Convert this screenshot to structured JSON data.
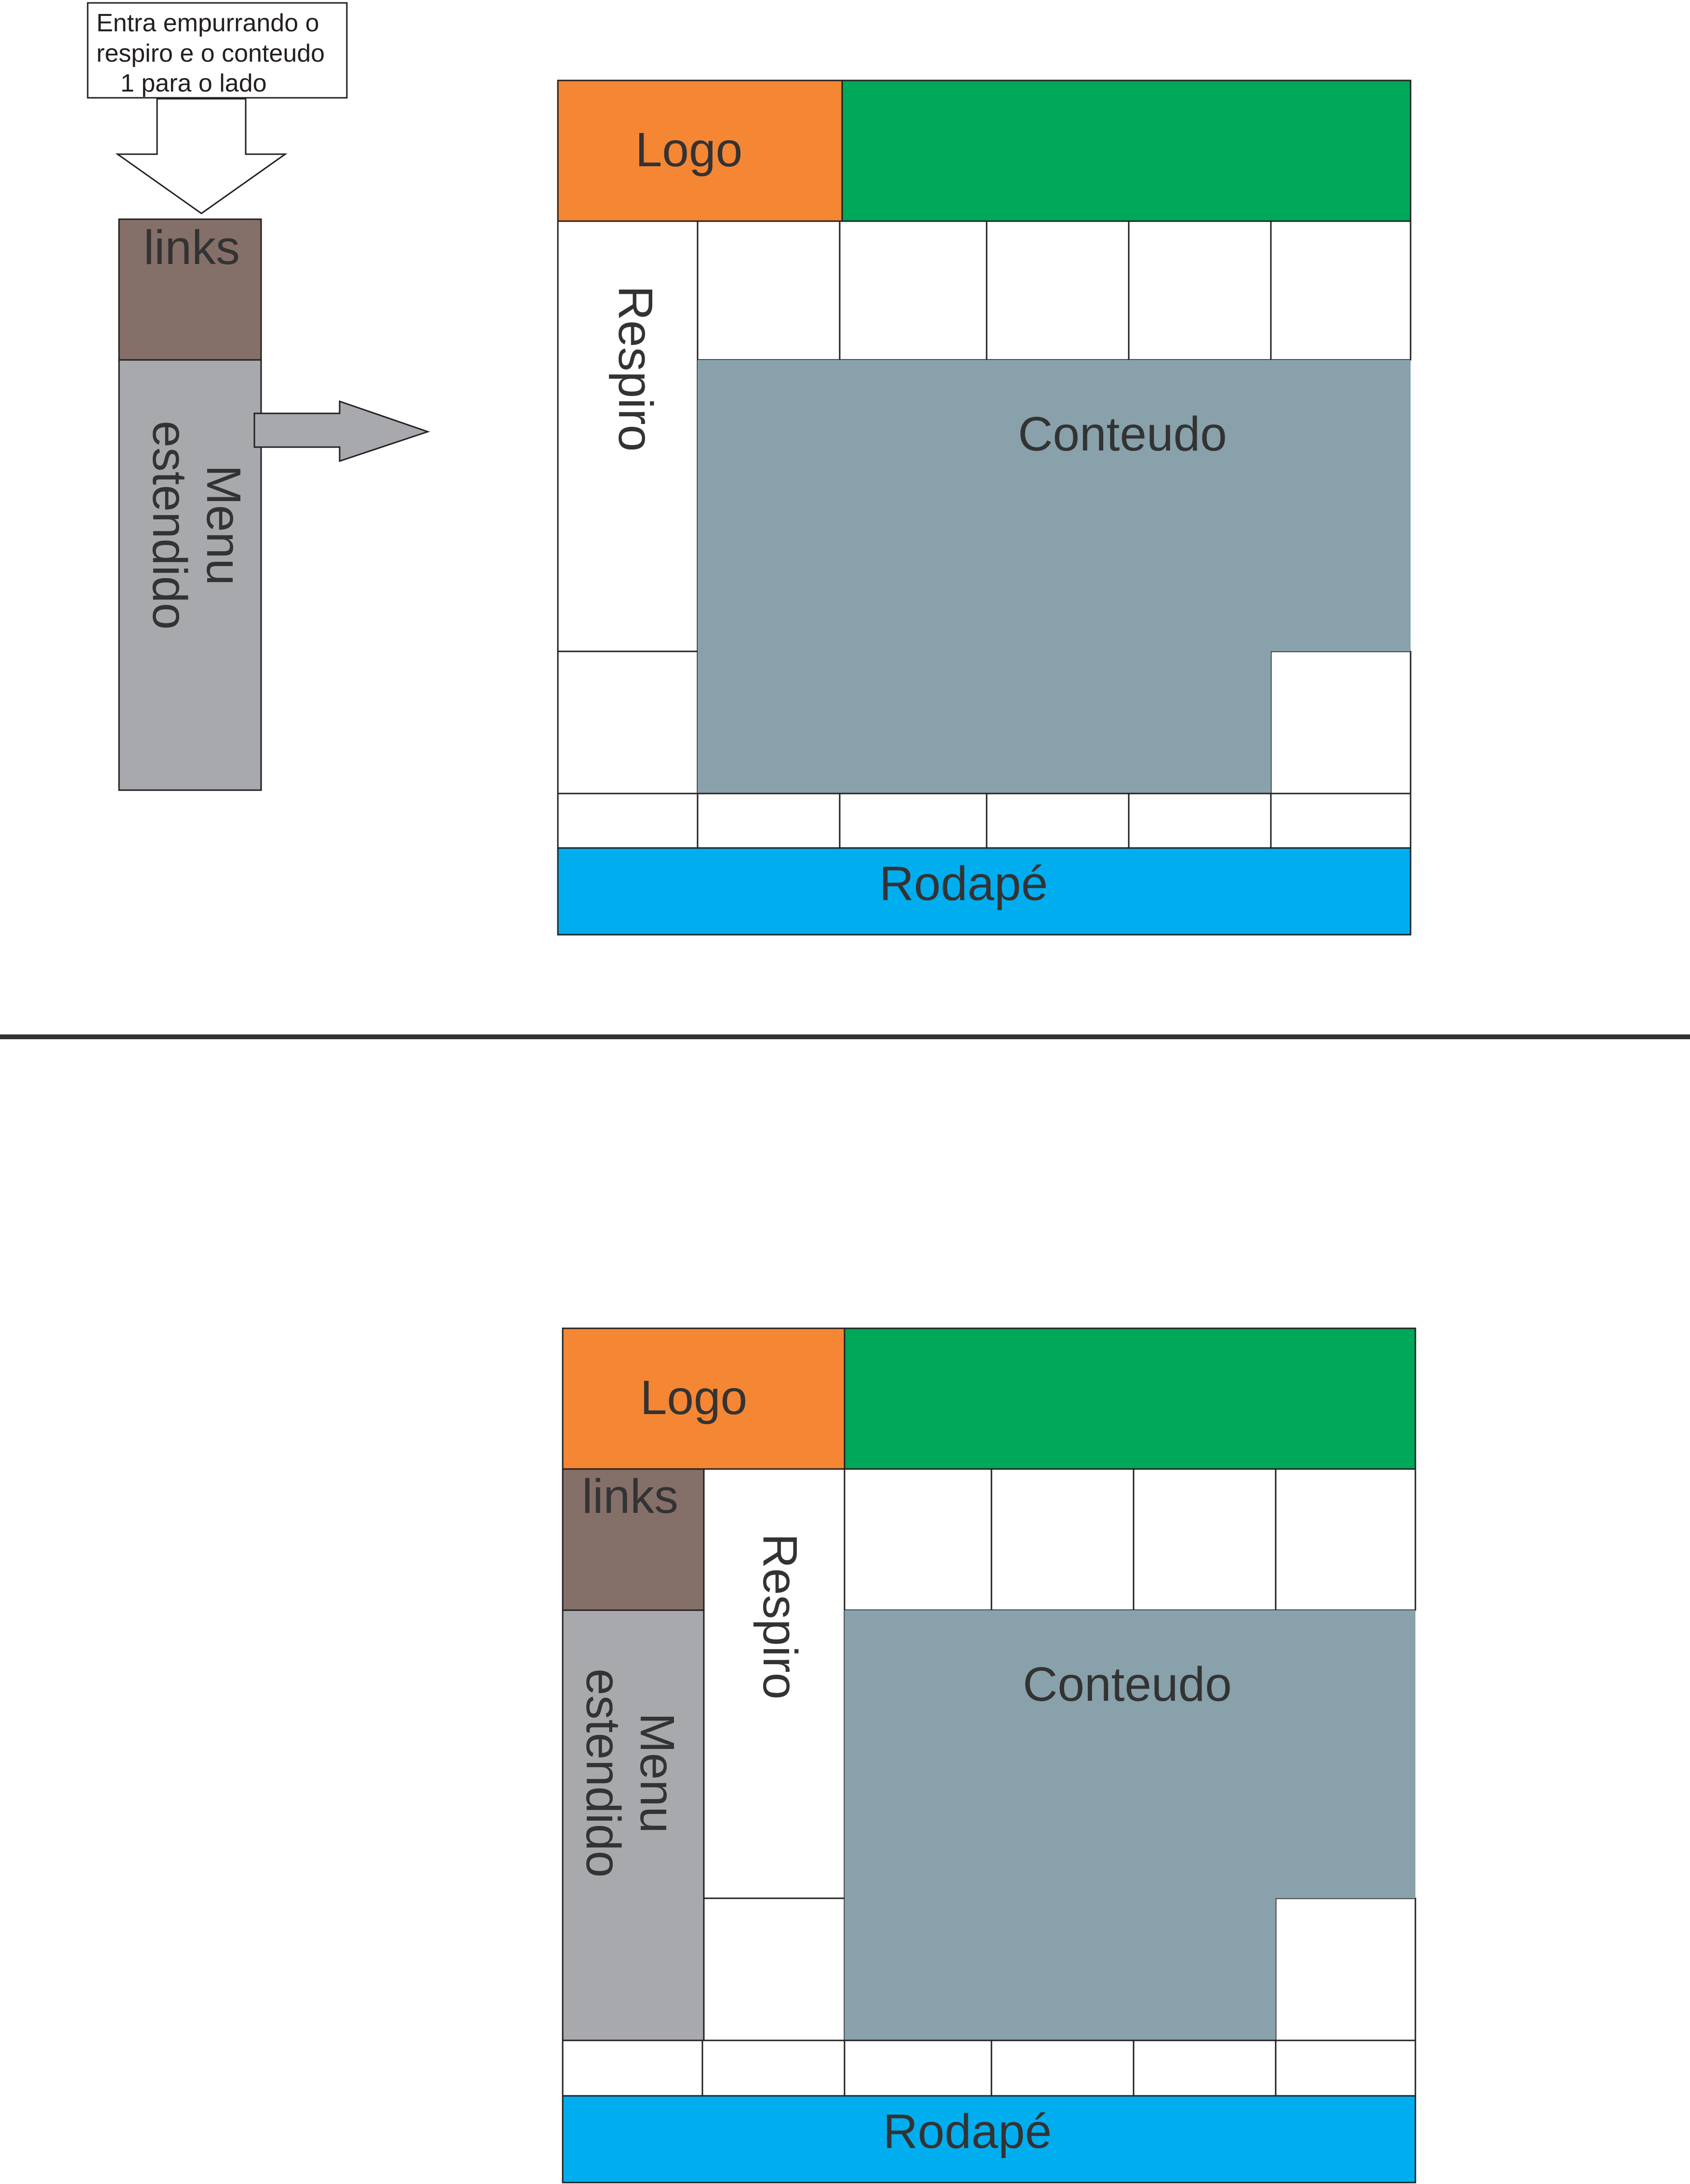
{
  "note": {
    "lines": [
      "Entra empurrando o",
      "respiro e o conteudo",
      "1 para o lado"
    ]
  },
  "top": {
    "links_label": "links",
    "menu_label_1": "Menu",
    "menu_label_2": "estendido",
    "logo_label": "Logo",
    "respiro_label": "Respiro",
    "conteudo_label": "Conteudo",
    "rodape_label": "Rodapé"
  },
  "bottom": {
    "links_label": "links",
    "menu_label_1": "Menu",
    "menu_label_2": "estendido",
    "logo_label": "Logo",
    "respiro_label": "Respiro",
    "conteudo_label": "Conteudo",
    "rodape_label": "Rodapé"
  },
  "colors": {
    "logo": "#f58634",
    "header": "#00a859",
    "links": "#857069",
    "menu": "#a7a9ac",
    "conteudo": "#88a1ab",
    "rodape": "#00aeef",
    "divider": "#333333",
    "stroke": "#231f20"
  }
}
